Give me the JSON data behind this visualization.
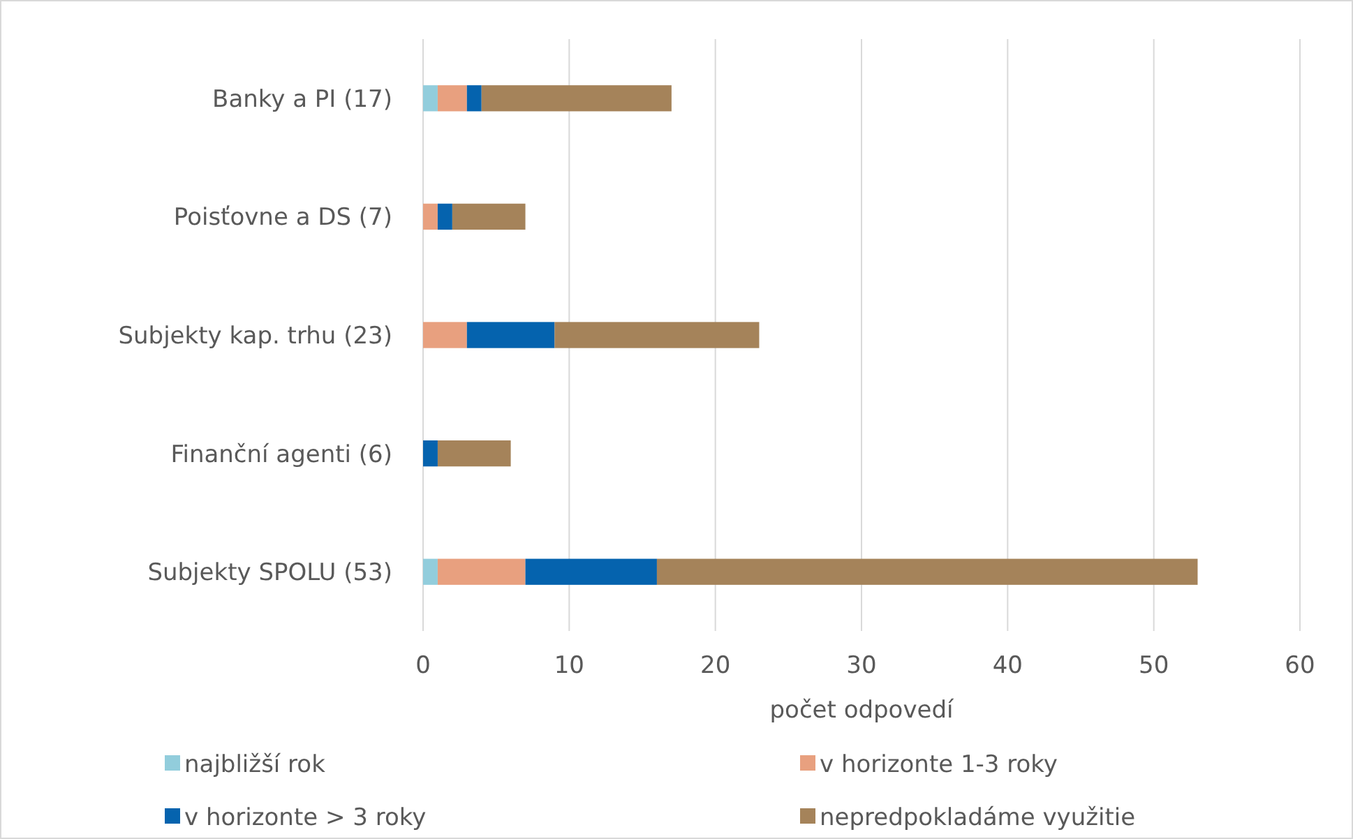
{
  "chart_data": {
    "type": "bar",
    "orientation": "horizontal",
    "stacked": true,
    "xlabel": "počet odpovedí",
    "categories": [
      "Banky a PI (17)",
      "Poisťovne a DS (7)",
      "Subjekty kap. trhu (23)",
      "Finanční agenti (6)",
      "Subjekty SPOLU (53)"
    ],
    "series": [
      {
        "name": "najbližší rok",
        "color": "#92cddc",
        "values": [
          1,
          0,
          0,
          0,
          1
        ]
      },
      {
        "name": "v horizonte 1-3 roky",
        "color": "#e8a07f",
        "values": [
          2,
          1,
          3,
          0,
          6
        ]
      },
      {
        "name": "v horizonte > 3 roky",
        "color": "#0563ae",
        "values": [
          1,
          1,
          6,
          1,
          9
        ]
      },
      {
        "name": "nepredpokladáme využitie",
        "color": "#a5835a",
        "values": [
          13,
          5,
          14,
          5,
          37
        ]
      }
    ],
    "xlim": [
      0,
      60
    ],
    "xticks": [
      0,
      10,
      20,
      30,
      40,
      50,
      60
    ],
    "grid": "x",
    "legend": "bottom"
  }
}
